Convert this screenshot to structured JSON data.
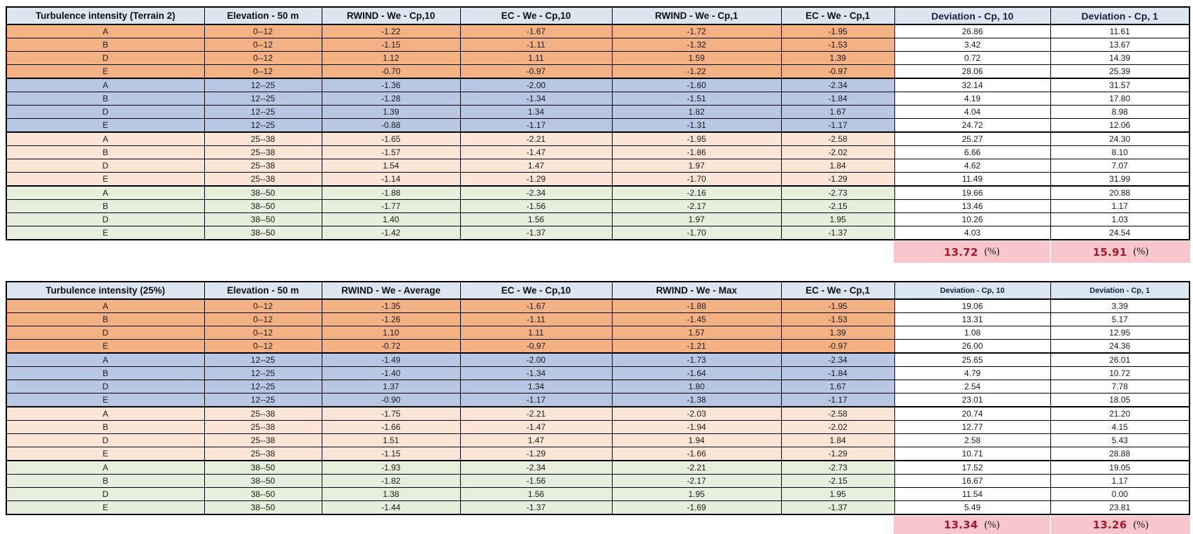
{
  "colors": {
    "header_fill": "#dce6f1",
    "band_orange": "#f4b183",
    "band_blue": "#b7c7e4",
    "band_peach": "#fbe5d6",
    "band_green": "#e7eedb",
    "deviation_fill": "#ffffff",
    "summary_fill": "#f7c7cc",
    "summary_number_color": "#a5182e",
    "border_color": "#000000"
  },
  "band_by_elevation": {
    "0--12": "orange",
    "12--25": "blue",
    "25--38": "peach",
    "38--50": "green"
  },
  "tables": [
    {
      "id": "terrain2",
      "headers": [
        "Turbulence intensity (Terrain 2)",
        "Elevation - 50 m",
        "RWIND - We - Cp,10",
        "EC - We - Cp,10",
        "RWIND - We - Cp,1",
        "EC - We - Cp,1",
        "Deviation - Cp, 10",
        "Deviation - Cp, 1"
      ],
      "rows": [
        [
          "A",
          "0--12",
          "-1.22",
          "-1.67",
          "-1.72",
          "-1.95",
          "26.86",
          "11.61"
        ],
        [
          "B",
          "0--12",
          "-1.15",
          "-1.11",
          "-1.32",
          "-1.53",
          "3.42",
          "13.67"
        ],
        [
          "D",
          "0--12",
          "1.12",
          "1.11",
          "1.59",
          "1.39",
          "0.72",
          "14.39"
        ],
        [
          "E",
          "0--12",
          "-0.70",
          "-0.97",
          "-1.22",
          "-0.97",
          "28.06",
          "25.39"
        ],
        [
          "A",
          "12--25",
          "-1.36",
          "-2.00",
          "-1.60",
          "-2.34",
          "32.14",
          "31.57"
        ],
        [
          "B",
          "12--25",
          "-1.28",
          "-1.34",
          "-1.51",
          "-1.84",
          "4.19",
          "17.80"
        ],
        [
          "D",
          "12--25",
          "1.39",
          "1.34",
          "1.82",
          "1.67",
          "4.04",
          "8.98"
        ],
        [
          "E",
          "12--25",
          "-0.88",
          "-1.17",
          "-1.31",
          "-1.17",
          "24.72",
          "12.06"
        ],
        [
          "A",
          "25--38",
          "-1.65",
          "-2.21",
          "-1.95",
          "-2.58",
          "25.27",
          "24.30"
        ],
        [
          "B",
          "25--38",
          "-1.57",
          "-1.47",
          "-1.86",
          "-2.02",
          "6.66",
          "8.10"
        ],
        [
          "D",
          "25--38",
          "1.54",
          "1.47",
          "1.97",
          "1.84",
          "4.62",
          "7.07"
        ],
        [
          "E",
          "25--38",
          "-1.14",
          "-1.29",
          "-1.70",
          "-1.29",
          "11.49",
          "31.99"
        ],
        [
          "A",
          "38--50",
          "-1.88",
          "-2.34",
          "-2.16",
          "-2.73",
          "19.66",
          "20.88"
        ],
        [
          "B",
          "38--50",
          "-1.77",
          "-1.56",
          "-2.17",
          "-2.15",
          "13.46",
          "1.17"
        ],
        [
          "D",
          "38--50",
          "1.40",
          "1.56",
          "1.97",
          "1.95",
          "10.26",
          "1.03"
        ],
        [
          "E",
          "38--50",
          "-1.42",
          "-1.37",
          "-1.70",
          "-1.37",
          "4.03",
          "24.54"
        ]
      ],
      "summary": {
        "deviation_cp10": "13.72",
        "deviation_cp1": "15.91",
        "unit": "(%)"
      }
    },
    {
      "id": "turbulence25",
      "headers": [
        "Turbulence intensity (25%)",
        "Elevation - 50 m",
        "RWIND - We - Average",
        "EC - We - Cp,10",
        "RWIND - We - Max",
        "EC - We - Cp,1",
        "Deviation - Cp, 10",
        "Deviation - Cp, 1"
      ],
      "rows": [
        [
          "A",
          "0--12",
          "-1.35",
          "-1.67",
          "-1.88",
          "-1.95",
          "19.06",
          "3.39"
        ],
        [
          "B",
          "0--12",
          "-1.26",
          "-1.11",
          "-1.45",
          "-1.53",
          "13.31",
          "5.17"
        ],
        [
          "D",
          "0--12",
          "1.10",
          "1.11",
          "1.57",
          "1.39",
          "1.08",
          "12.95"
        ],
        [
          "E",
          "0--12",
          "-0.72",
          "-0.97",
          "-1.21",
          "-0.97",
          "26.00",
          "24.36"
        ],
        [
          "A",
          "12--25",
          "-1.49",
          "-2.00",
          "-1.73",
          "-2.34",
          "25.65",
          "26.01"
        ],
        [
          "B",
          "12--25",
          "-1.40",
          "-1.34",
          "-1.64",
          "-1.84",
          "4.79",
          "10.72"
        ],
        [
          "D",
          "12--25",
          "1.37",
          "1.34",
          "1.80",
          "1.67",
          "2.54",
          "7.78"
        ],
        [
          "E",
          "12--25",
          "-0.90",
          "-1.17",
          "-1.38",
          "-1.17",
          "23.01",
          "18.05"
        ],
        [
          "A",
          "25--38",
          "-1.75",
          "-2.21",
          "-2.03",
          "-2.58",
          "20.74",
          "21.20"
        ],
        [
          "B",
          "25--38",
          "-1.66",
          "-1.47",
          "-1.94",
          "-2.02",
          "12.77",
          "4.15"
        ],
        [
          "D",
          "25--38",
          "1.51",
          "1.47",
          "1.94",
          "1.84",
          "2.58",
          "5.43"
        ],
        [
          "E",
          "25--38",
          "-1.15",
          "-1.29",
          "-1.66",
          "-1.29",
          "10.71",
          "28.88"
        ],
        [
          "A",
          "38--50",
          "-1.93",
          "-2.34",
          "-2.21",
          "-2.73",
          "17.52",
          "19.05"
        ],
        [
          "B",
          "38--50",
          "-1.82",
          "-1.56",
          "-2.17",
          "-2.15",
          "16.67",
          "1.17"
        ],
        [
          "D",
          "38--50",
          "1.38",
          "1.56",
          "1.95",
          "1.95",
          "11.54",
          "0.00"
        ],
        [
          "E",
          "38--50",
          "-1.44",
          "-1.37",
          "-1.69",
          "-1.37",
          "5.49",
          "23.81"
        ]
      ],
      "summary": {
        "deviation_cp10": "13.34",
        "deviation_cp1": "13.26",
        "unit": "(%)"
      }
    }
  ]
}
